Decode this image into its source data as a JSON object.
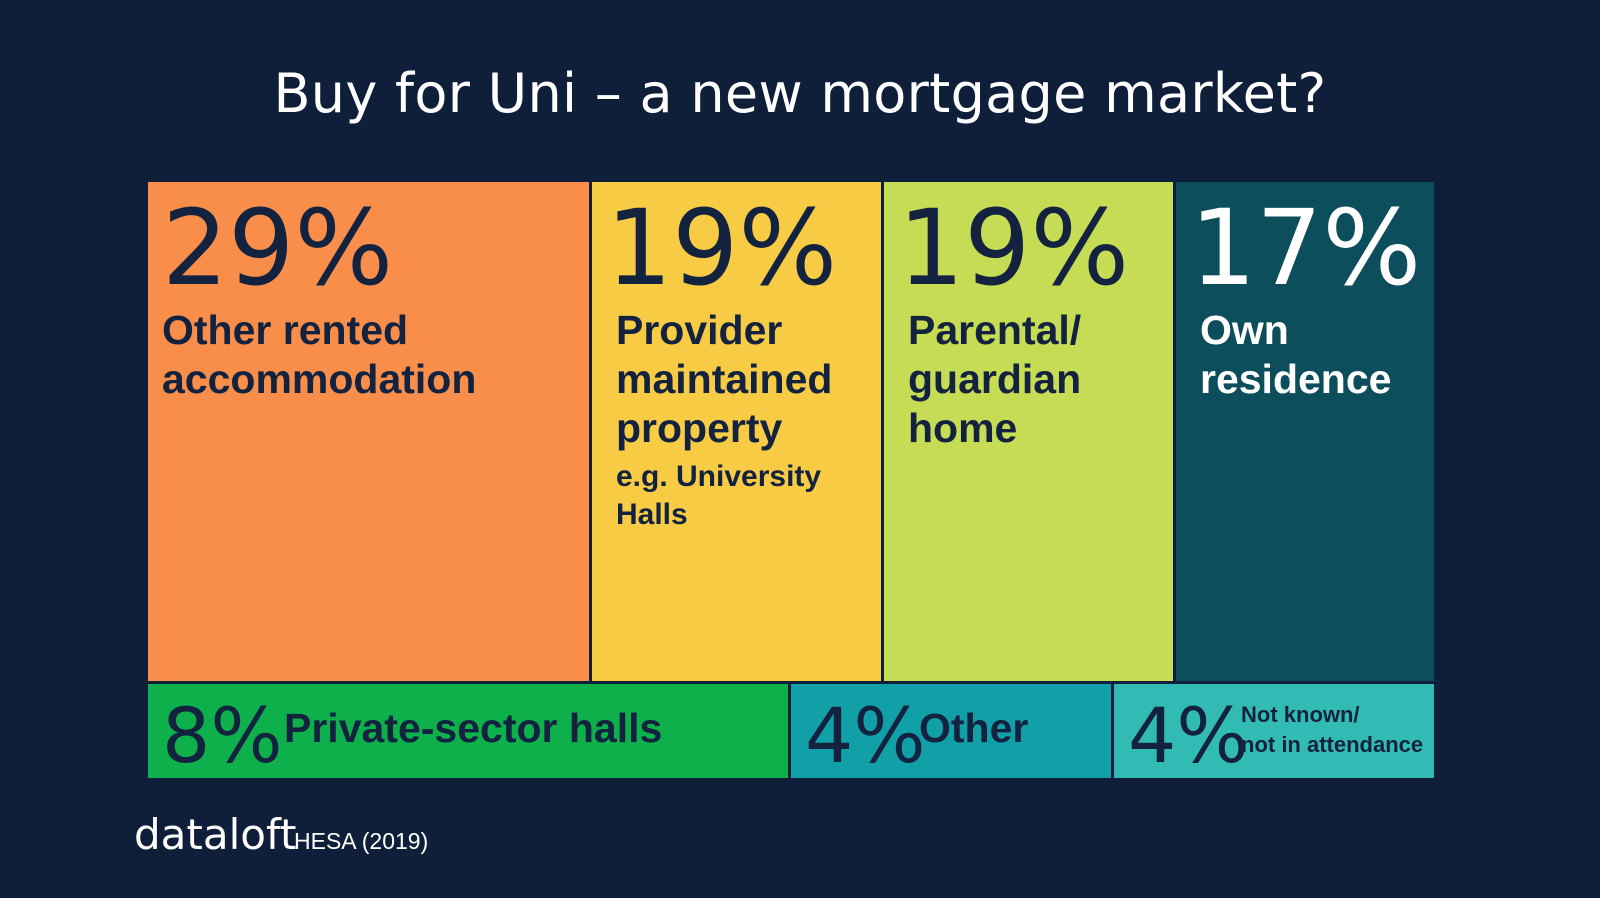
{
  "chart_data": {
    "type": "treemap",
    "title": "Buy for Uni – a new mortgage market?",
    "unit": "%",
    "items": [
      {
        "value": 29,
        "pct_label": "29%",
        "label": "Other rented accommodation",
        "sublabel": "",
        "color": "#f98e4a",
        "text_color": "#13233f"
      },
      {
        "value": 19,
        "pct_label": "19%",
        "label": "Provider maintained property",
        "sublabel": "e.g. University Halls",
        "color": "#f7cc44",
        "text_color": "#13233f"
      },
      {
        "value": 19,
        "pct_label": "19%",
        "label": "Parental/ guardian home",
        "sublabel": "",
        "color": "#c6dc55",
        "text_color": "#13233f"
      },
      {
        "value": 17,
        "pct_label": "17%",
        "label": "Own residence",
        "sublabel": "",
        "color": "#0c4e5c",
        "text_color": "#ffffff"
      },
      {
        "value": 8,
        "pct_label": "8%",
        "label": "Private-sector halls",
        "sublabel": "",
        "color": "#0db04b",
        "text_color": "#13233f"
      },
      {
        "value": 4,
        "pct_label": "4%",
        "label": "Other",
        "sublabel": "",
        "color": "#12a0a8",
        "text_color": "#13233f"
      },
      {
        "value": 4,
        "pct_label": "4%",
        "label": "Not known/ not in attendance",
        "sublabel": "",
        "color": "#32bbb5",
        "text_color": "#13233f"
      }
    ]
  },
  "footer": {
    "brand": "dataloft",
    "source": "HESA (2019)"
  }
}
